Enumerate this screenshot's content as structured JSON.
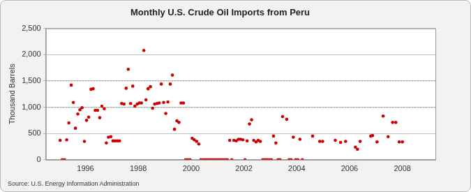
{
  "chart_data": {
    "type": "scatter",
    "title": "Monthly U.S. Crude Oil Imports from Peru",
    "y_label": "Thousand Barrels",
    "annotations": [
      "Source: U.S. Energy Information Administration"
    ],
    "color": "#cc0000",
    "marker": "circle",
    "grid": true,
    "xlim": [
      1994.5,
      2009.25
    ],
    "xticks": [
      1996,
      1998,
      2000,
      2002,
      2004,
      2006,
      2008
    ],
    "ylim": [
      0,
      2500
    ],
    "yticks": [
      0,
      500,
      {
        "value": 1000,
        "label": "1,000"
      },
      {
        "value": 1500,
        "label": "1,500"
      },
      {
        "value": 2000,
        "label": "2,000"
      },
      {
        "value": 2500,
        "label": "2,500"
      }
    ],
    "x": [
      1995.04,
      1995.12,
      1995.21,
      1995.29,
      1995.37,
      1995.46,
      1995.54,
      1995.62,
      1995.71,
      1995.79,
      1995.87,
      1995.96,
      1996.04,
      1996.12,
      1996.21,
      1996.29,
      1996.37,
      1996.46,
      1996.54,
      1996.62,
      1996.71,
      1996.79,
      1996.87,
      1996.96,
      1997.04,
      1997.12,
      1997.21,
      1997.29,
      1997.37,
      1997.46,
      1997.54,
      1997.62,
      1997.71,
      1997.79,
      1997.87,
      1997.96,
      1998.04,
      1998.12,
      1998.21,
      1998.29,
      1998.37,
      1998.46,
      1998.54,
      1998.62,
      1998.71,
      1998.79,
      1998.87,
      1998.96,
      1999.04,
      1999.12,
      1999.21,
      1999.29,
      1999.37,
      1999.46,
      1999.54,
      1999.62,
      1999.71,
      1999.79,
      1999.87,
      1999.96,
      2000.04,
      2000.12,
      2000.21,
      2000.29,
      2000.37,
      2000.46,
      2000.54,
      2000.62,
      2000.71,
      2000.79,
      2000.87,
      2000.96,
      2001.04,
      2001.12,
      2001.21,
      2001.29,
      2001.37,
      2001.46,
      2001.54,
      2001.62,
      2001.71,
      2001.79,
      2001.87,
      2001.96,
      2002.04,
      2002.12,
      2002.21,
      2002.29,
      2002.37,
      2002.46,
      2002.54,
      2002.62,
      2002.71,
      2002.79,
      2002.87,
      2002.96,
      2003.04,
      2003.12,
      2003.21,
      2003.29,
      2003.37,
      2003.46,
      2003.62,
      2003.71,
      2003.79,
      2003.87,
      2003.96,
      2004.04,
      2004.12,
      2004.21,
      2004.6,
      2004.87,
      2004.98,
      2005.46,
      2005.66,
      2005.85,
      2006.22,
      2006.3,
      2006.4,
      2006.8,
      2006.87,
      2007.04,
      2007.27,
      2007.46,
      2007.63,
      2007.75,
      2007.88,
      2008.0
    ],
    "values": [
      370,
      0,
      0,
      380,
      700,
      1420,
      1090,
      600,
      870,
      950,
      990,
      350,
      750,
      810,
      1340,
      1350,
      940,
      940,
      800,
      1020,
      970,
      320,
      430,
      440,
      360,
      360,
      360,
      360,
      1070,
      1060,
      1360,
      1720,
      1070,
      1400,
      1020,
      1060,
      1080,
      1080,
      2080,
      1140,
      1350,
      1390,
      980,
      1060,
      1070,
      1080,
      1440,
      1090,
      880,
      1100,
      1440,
      1610,
      580,
      740,
      710,
      1080,
      1080,
      0,
      0,
      0,
      410,
      380,
      350,
      300,
      0,
      0,
      0,
      0,
      0,
      0,
      0,
      0,
      0,
      0,
      0,
      0,
      0,
      370,
      0,
      370,
      360,
      390,
      390,
      380,
      0,
      360,
      680,
      760,
      370,
      340,
      370,
      350,
      0,
      0,
      0,
      0,
      0,
      450,
      320,
      0,
      0,
      820,
      770,
      0,
      0,
      430,
      0,
      0,
      390,
      0,
      450,
      350,
      350,
      370,
      330,
      350,
      240,
      200,
      350,
      450,
      460,
      340,
      830,
      440,
      710,
      710,
      340,
      340
    ]
  }
}
